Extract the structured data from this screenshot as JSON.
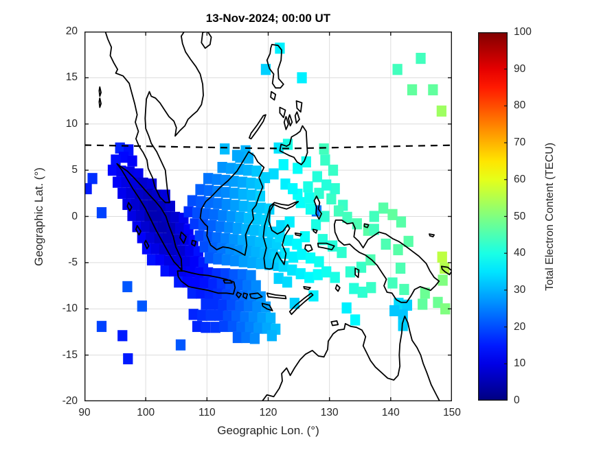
{
  "chart_data": {
    "type": "heatmap",
    "title": "13-Nov-2024; 00:00 UT",
    "xlabel": "Geographic Lon. (°)",
    "ylabel": "Geographic Lat. (°)",
    "xlim": [
      90,
      150
    ],
    "ylim": [
      -20,
      20
    ],
    "xticks": [
      90,
      100,
      110,
      120,
      130,
      140,
      150
    ],
    "yticks": [
      20,
      15,
      10,
      5,
      0,
      -5,
      -10,
      -15,
      -20
    ],
    "grid": true,
    "legend_position": "colorbar-right",
    "colorbar": {
      "label": "Total Electron Content (TECU)",
      "min": 0,
      "max": 100,
      "ticks": [
        0,
        10,
        20,
        30,
        40,
        50,
        60,
        70,
        80,
        90,
        100
      ],
      "colormap": "jet"
    },
    "cell_size_deg": {
      "lon": 1.6,
      "lat": 1.2
    },
    "map_overlay": "Southeast Asia and northern Australia coastlines",
    "magnetic_equator_line": [
      [
        90,
        7.72
      ],
      [
        98,
        7.62
      ],
      [
        106,
        7.52
      ],
      [
        112,
        7.45
      ],
      [
        118,
        7.38
      ],
      [
        123,
        7.35
      ],
      [
        129,
        7.42
      ],
      [
        136,
        7.52
      ],
      [
        143,
        7.62
      ],
      [
        150,
        7.7
      ]
    ],
    "points": [
      [
        91.3,
        4.1,
        17
      ],
      [
        90.4,
        3.0,
        15
      ],
      [
        92.8,
        0.4,
        19
      ],
      [
        97.0,
        -7.6,
        21
      ],
      [
        99.4,
        -9.7,
        21
      ],
      [
        92.8,
        -11.9,
        19
      ],
      [
        96.2,
        -12.9,
        15
      ],
      [
        105.7,
        -13.9,
        21
      ],
      [
        97.1,
        -15.4,
        15
      ],
      [
        95.8,
        7.4,
        16
      ],
      [
        97.2,
        7.2,
        14
      ],
      [
        96.4,
        6.4,
        13
      ],
      [
        95.1,
        6.1,
        14
      ],
      [
        97.8,
        6.0,
        12
      ],
      [
        94.6,
        5.0,
        13
      ],
      [
        96.0,
        4.9,
        11
      ],
      [
        97.4,
        4.8,
        10
      ],
      [
        98.8,
        4.6,
        11
      ],
      [
        95.4,
        3.7,
        12
      ],
      [
        96.8,
        3.7,
        10
      ],
      [
        98.2,
        3.6,
        9
      ],
      [
        99.6,
        3.6,
        8
      ],
      [
        101.0,
        3.5,
        9
      ],
      [
        96.2,
        2.5,
        11
      ],
      [
        97.6,
        2.5,
        9
      ],
      [
        99.0,
        2.4,
        7
      ],
      [
        100.4,
        2.4,
        6
      ],
      [
        101.8,
        2.3,
        7
      ],
      [
        103.2,
        2.3,
        9
      ],
      [
        97.0,
        1.3,
        10
      ],
      [
        98.4,
        1.3,
        8
      ],
      [
        99.8,
        1.2,
        6
      ],
      [
        101.2,
        1.2,
        5
      ],
      [
        102.6,
        1.1,
        6
      ],
      [
        104.0,
        1.1,
        8
      ],
      [
        97.8,
        0.1,
        10
      ],
      [
        99.2,
        0.1,
        8
      ],
      [
        100.6,
        0.0,
        5
      ],
      [
        102.0,
        0.0,
        5
      ],
      [
        103.4,
        -0.1,
        6
      ],
      [
        104.8,
        -0.1,
        8
      ],
      [
        106.2,
        -0.2,
        11
      ],
      [
        98.6,
        -1.1,
        11
      ],
      [
        100.0,
        -1.1,
        8
      ],
      [
        101.4,
        -1.2,
        6
      ],
      [
        102.8,
        -1.2,
        5
      ],
      [
        104.2,
        -1.3,
        6
      ],
      [
        105.6,
        -1.3,
        9
      ],
      [
        107.0,
        -1.4,
        12
      ],
      [
        99.4,
        -2.3,
        12
      ],
      [
        100.8,
        -2.3,
        9
      ],
      [
        102.2,
        -2.4,
        7
      ],
      [
        103.6,
        -2.4,
        6
      ],
      [
        105.0,
        -2.5,
        7
      ],
      [
        106.4,
        -2.5,
        10
      ],
      [
        107.8,
        -2.6,
        13
      ],
      [
        100.2,
        -3.5,
        13
      ],
      [
        101.6,
        -3.5,
        10
      ],
      [
        103.0,
        -3.6,
        8
      ],
      [
        104.4,
        -3.6,
        7
      ],
      [
        105.8,
        -3.7,
        8
      ],
      [
        107.2,
        -3.7,
        11
      ],
      [
        108.6,
        -3.8,
        14
      ],
      [
        101.0,
        -4.7,
        14
      ],
      [
        102.4,
        -4.7,
        12
      ],
      [
        103.8,
        -4.8,
        10
      ],
      [
        105.2,
        -4.8,
        9
      ],
      [
        106.6,
        -4.9,
        10
      ],
      [
        108.0,
        -4.9,
        12
      ],
      [
        109.4,
        -5.0,
        15
      ],
      [
        103.2,
        -5.9,
        14
      ],
      [
        104.6,
        -5.9,
        12
      ],
      [
        106.0,
        -6.0,
        11
      ],
      [
        107.4,
        -6.0,
        12
      ],
      [
        108.8,
        -6.1,
        13
      ],
      [
        110.2,
        -6.1,
        15
      ],
      [
        111.6,
        -6.2,
        17
      ],
      [
        113.0,
        -6.2,
        19
      ],
      [
        114.4,
        -6.3,
        21
      ],
      [
        115.8,
        -6.3,
        23
      ],
      [
        117.2,
        -6.4,
        25
      ],
      [
        105.4,
        -7.1,
        15
      ],
      [
        106.8,
        -7.1,
        13
      ],
      [
        108.2,
        -7.2,
        13
      ],
      [
        109.6,
        -7.2,
        14
      ],
      [
        111.0,
        -7.3,
        16
      ],
      [
        112.4,
        -7.3,
        18
      ],
      [
        113.8,
        -7.4,
        20
      ],
      [
        115.2,
        -7.4,
        22
      ],
      [
        116.6,
        -7.5,
        24
      ],
      [
        118.0,
        -7.5,
        26
      ],
      [
        107.6,
        -8.3,
        16
      ],
      [
        109.0,
        -8.3,
        15
      ],
      [
        110.4,
        -8.4,
        16
      ],
      [
        111.8,
        -8.4,
        17
      ],
      [
        113.2,
        -8.5,
        19
      ],
      [
        114.6,
        -8.5,
        21
      ],
      [
        116.0,
        -8.6,
        23
      ],
      [
        117.4,
        -8.6,
        25
      ],
      [
        118.8,
        -8.7,
        27
      ],
      [
        109.8,
        -9.5,
        17
      ],
      [
        111.2,
        -9.5,
        17
      ],
      [
        112.6,
        -9.6,
        18
      ],
      [
        114.0,
        -9.6,
        20
      ],
      [
        115.4,
        -9.7,
        22
      ],
      [
        116.8,
        -9.7,
        24
      ],
      [
        118.2,
        -9.8,
        26
      ],
      [
        119.6,
        -9.8,
        28
      ],
      [
        107.8,
        -10.6,
        16
      ],
      [
        109.2,
        -10.7,
        17
      ],
      [
        110.6,
        -10.7,
        18
      ],
      [
        112.0,
        -10.7,
        18
      ],
      [
        113.4,
        -10.8,
        20
      ],
      [
        114.8,
        -10.8,
        22
      ],
      [
        116.2,
        -10.9,
        24
      ],
      [
        117.6,
        -10.9,
        26
      ],
      [
        119.0,
        -11.0,
        28
      ],
      [
        120.4,
        -11.0,
        30
      ],
      [
        108.4,
        -11.9,
        16
      ],
      [
        109.8,
        -12.0,
        17
      ],
      [
        111.4,
        -12.0,
        18
      ],
      [
        112.8,
        -11.9,
        19
      ],
      [
        114.2,
        -11.9,
        21
      ],
      [
        115.6,
        -12.0,
        23
      ],
      [
        117.0,
        -12.0,
        25
      ],
      [
        118.4,
        -12.1,
        27
      ],
      [
        119.8,
        -12.1,
        29
      ],
      [
        121.2,
        -12.2,
        31
      ],
      [
        115.0,
        -13.1,
        22
      ],
      [
        116.4,
        -13.1,
        24
      ],
      [
        117.8,
        -13.2,
        26
      ],
      [
        120.6,
        -12.9,
        30
      ],
      [
        112.9,
        7.3,
        31
      ],
      [
        114.9,
        6.6,
        29
      ],
      [
        116.3,
        7.1,
        30
      ],
      [
        121.7,
        7.4,
        35
      ],
      [
        123.2,
        7.8,
        40
      ],
      [
        129.1,
        7.3,
        44
      ],
      [
        115.4,
        6.4,
        29
      ],
      [
        116.8,
        6.3,
        30
      ],
      [
        112.5,
        5.3,
        27
      ],
      [
        113.9,
        5.2,
        28
      ],
      [
        115.3,
        5.1,
        29
      ],
      [
        116.7,
        5.0,
        30
      ],
      [
        118.1,
        4.9,
        32
      ],
      [
        110.2,
        4.1,
        24
      ],
      [
        111.6,
        4.0,
        25
      ],
      [
        113.0,
        3.9,
        26
      ],
      [
        114.4,
        3.8,
        28
      ],
      [
        115.8,
        3.7,
        29
      ],
      [
        117.2,
        3.6,
        31
      ],
      [
        118.6,
        3.5,
        32
      ],
      [
        108.9,
        2.9,
        22
      ],
      [
        110.3,
        2.8,
        23
      ],
      [
        111.7,
        2.7,
        25
      ],
      [
        113.1,
        2.6,
        26
      ],
      [
        114.5,
        2.5,
        28
      ],
      [
        115.9,
        2.4,
        30
      ],
      [
        117.3,
        2.3,
        31
      ],
      [
        118.7,
        2.2,
        33
      ],
      [
        107.6,
        1.7,
        20
      ],
      [
        109.0,
        1.6,
        21
      ],
      [
        110.4,
        1.5,
        23
      ],
      [
        111.8,
        1.4,
        24
      ],
      [
        113.2,
        1.3,
        26
      ],
      [
        114.6,
        1.2,
        28
      ],
      [
        116.0,
        1.1,
        30
      ],
      [
        117.4,
        1.0,
        31
      ],
      [
        118.8,
        0.9,
        32
      ],
      [
        120.2,
        0.8,
        33
      ],
      [
        107.0,
        0.5,
        17
      ],
      [
        108.4,
        0.4,
        20
      ],
      [
        109.8,
        0.3,
        22
      ],
      [
        111.2,
        0.2,
        23
      ],
      [
        112.6,
        0.1,
        25
      ],
      [
        114.0,
        0.0,
        27
      ],
      [
        115.4,
        -0.1,
        29
      ],
      [
        116.8,
        -0.2,
        31
      ],
      [
        118.2,
        -0.3,
        32
      ],
      [
        119.6,
        -0.4,
        33
      ],
      [
        108.0,
        -0.8,
        18
      ],
      [
        109.4,
        -0.9,
        20
      ],
      [
        110.8,
        -1.0,
        22
      ],
      [
        112.2,
        -1.1,
        24
      ],
      [
        113.6,
        -1.2,
        26
      ],
      [
        115.0,
        -1.3,
        28
      ],
      [
        116.4,
        -1.4,
        30
      ],
      [
        117.8,
        -1.5,
        31
      ],
      [
        119.2,
        -1.6,
        32
      ],
      [
        120.6,
        -1.7,
        33
      ],
      [
        108.8,
        -2.1,
        19
      ],
      [
        110.2,
        -2.2,
        21
      ],
      [
        111.6,
        -2.3,
        23
      ],
      [
        113.0,
        -2.4,
        25
      ],
      [
        114.4,
        -2.5,
        27
      ],
      [
        115.8,
        -2.6,
        29
      ],
      [
        117.2,
        -2.7,
        30
      ],
      [
        118.6,
        -2.8,
        31
      ],
      [
        120.0,
        -2.9,
        32
      ],
      [
        121.4,
        -3.0,
        33
      ],
      [
        109.6,
        -3.3,
        20
      ],
      [
        111.0,
        -3.4,
        22
      ],
      [
        112.4,
        -3.5,
        24
      ],
      [
        113.8,
        -3.6,
        26
      ],
      [
        115.2,
        -3.7,
        27
      ],
      [
        116.6,
        -3.8,
        29
      ],
      [
        118.0,
        -3.9,
        30
      ],
      [
        119.4,
        -4.0,
        31
      ],
      [
        120.8,
        -4.1,
        32
      ],
      [
        110.4,
        -4.5,
        21
      ],
      [
        111.8,
        -4.6,
        23
      ],
      [
        113.2,
        -4.7,
        25
      ],
      [
        114.6,
        -4.8,
        26
      ],
      [
        116.0,
        -4.9,
        28
      ],
      [
        117.4,
        -5.0,
        29
      ],
      [
        118.8,
        -5.1,
        30
      ],
      [
        120.2,
        -5.2,
        31
      ],
      [
        121.6,
        -5.3,
        32
      ],
      [
        122.5,
        5.6,
        37
      ],
      [
        124.8,
        5.2,
        38
      ],
      [
        120.9,
        4.6,
        34
      ],
      [
        119.5,
        4.2,
        33
      ],
      [
        122.8,
        3.5,
        36
      ],
      [
        126.5,
        3.2,
        40
      ],
      [
        124.8,
        2.4,
        38
      ],
      [
        128.3,
        2.5,
        42
      ],
      [
        130.3,
        1.9,
        43
      ],
      [
        129.3,
        6.1,
        43
      ],
      [
        130.6,
        5.0,
        43
      ],
      [
        128.0,
        4.3,
        41
      ],
      [
        126.2,
        5.9,
        39
      ],
      [
        124.0,
        3.0,
        37
      ],
      [
        125.3,
        1.5,
        38
      ],
      [
        126.7,
        2.0,
        39
      ],
      [
        130.9,
        3.0,
        42
      ],
      [
        129.5,
        3.4,
        41
      ],
      [
        132.2,
        1.2,
        43
      ],
      [
        127.9,
        0.6,
        24
      ],
      [
        126.9,
        0.8,
        39
      ],
      [
        129.2,
        0.0,
        42
      ],
      [
        131.5,
        0.6,
        44
      ],
      [
        132.9,
        -0.1,
        44
      ],
      [
        134.5,
        -0.8,
        45
      ],
      [
        136.3,
        -1.5,
        46
      ],
      [
        127.8,
        -0.9,
        40
      ],
      [
        126.0,
        -2.2,
        38
      ],
      [
        128.9,
        -2.5,
        41
      ],
      [
        130.5,
        -3.2,
        41
      ],
      [
        132.0,
        -3.9,
        42
      ],
      [
        122.1,
        -1.0,
        34
      ],
      [
        123.5,
        -0.6,
        36
      ],
      [
        121.9,
        -2.2,
        34
      ],
      [
        123.3,
        -2.6,
        36
      ],
      [
        124.7,
        -3.0,
        37
      ],
      [
        122.7,
        -4.0,
        35
      ],
      [
        124.1,
        -4.4,
        36
      ],
      [
        121.3,
        -4.4,
        33
      ],
      [
        122.5,
        -5.4,
        34
      ],
      [
        125.5,
        -4.1,
        37
      ],
      [
        126.9,
        -4.5,
        38
      ],
      [
        128.3,
        -4.9,
        39
      ],
      [
        123.9,
        -5.8,
        35
      ],
      [
        125.3,
        -6.2,
        36
      ],
      [
        126.7,
        -6.6,
        37
      ],
      [
        121.7,
        -6.7,
        33
      ],
      [
        123.1,
        -7.1,
        34
      ],
      [
        128.1,
        -6.3,
        38
      ],
      [
        129.5,
        -6.0,
        39
      ],
      [
        130.9,
        -6.6,
        40
      ],
      [
        133.4,
        -6.0,
        42
      ],
      [
        135.2,
        -5.5,
        43
      ],
      [
        136.7,
        -4.7,
        45
      ],
      [
        134.0,
        -7.8,
        41
      ],
      [
        135.4,
        -8.2,
        42
      ],
      [
        136.8,
        -7.7,
        43
      ],
      [
        132.8,
        -9.9,
        36
      ],
      [
        134.2,
        -11.2,
        37
      ],
      [
        127.4,
        -8.6,
        36
      ],
      [
        124.3,
        -9.4,
        33
      ],
      [
        137.3,
        0.0,
        44
      ],
      [
        138.8,
        0.9,
        46
      ],
      [
        140.3,
        0.2,
        47
      ],
      [
        141.7,
        -0.6,
        46
      ],
      [
        139.2,
        -3.0,
        45
      ],
      [
        141.2,
        -3.6,
        46
      ],
      [
        142.9,
        -2.7,
        46
      ],
      [
        137.3,
        -1.4,
        44
      ],
      [
        141.6,
        -5.6,
        45
      ],
      [
        140.3,
        -7.2,
        44
      ],
      [
        142.2,
        -7.9,
        45
      ],
      [
        145.6,
        -8.3,
        48
      ],
      [
        145.2,
        -9.5,
        47
      ],
      [
        148.4,
        -4.4,
        56
      ],
      [
        148.8,
        -5.6,
        55
      ],
      [
        148.5,
        -6.9,
        50
      ],
      [
        141.3,
        -9.4,
        34
      ],
      [
        142.7,
        -9.6,
        33
      ],
      [
        142.0,
        -10.6,
        32
      ],
      [
        142.0,
        -11.8,
        33
      ],
      [
        140.6,
        -10.2,
        32
      ],
      [
        147.7,
        -9.3,
        48
      ],
      [
        148.9,
        -10.0,
        50
      ],
      [
        121.9,
        18.2,
        36
      ],
      [
        119.6,
        15.9,
        33
      ],
      [
        125.5,
        15.0,
        36
      ],
      [
        141.1,
        15.9,
        44
      ],
      [
        144.9,
        17.1,
        44
      ],
      [
        143.5,
        13.7,
        47
      ],
      [
        146.9,
        13.7,
        47
      ],
      [
        148.3,
        11.4,
        53
      ]
    ]
  },
  "colors": {
    "background": "#ffffff",
    "axis": "#151515",
    "grid": "#dcdcdc",
    "coastline": "#000000",
    "text": "#262626",
    "colormap_ends": {
      "low": "#000080",
      "high": "#800000"
    }
  }
}
